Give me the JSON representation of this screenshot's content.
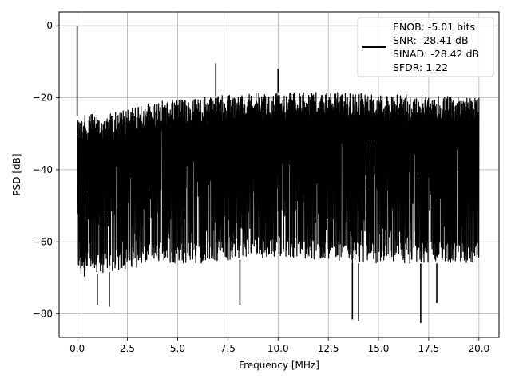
{
  "chart_data": {
    "type": "line",
    "title": "",
    "xlabel": "Frequency [MHz]",
    "ylabel": "PSD [dB]",
    "xlim": [
      -0.9,
      21.0
    ],
    "ylim": [
      -86.5,
      3.8
    ],
    "grid": true,
    "legend_position": "top-right",
    "line_color": "#000000",
    "x_ticks": [
      0.0,
      2.5,
      5.0,
      7.5,
      10.0,
      12.5,
      15.0,
      17.5,
      20.0
    ],
    "x_tick_labels": [
      "0.0",
      "2.5",
      "5.0",
      "7.5",
      "10.0",
      "12.5",
      "15.0",
      "17.5",
      "20.0"
    ],
    "y_ticks": [
      0,
      -20,
      -40,
      -60,
      -80
    ],
    "y_tick_labels": [
      "0",
      "−20",
      "−40",
      "−60",
      "−80"
    ],
    "legend": {
      "lines": [
        "ENOB: -5.01 bits",
        "SNR: -28.41 dB",
        "SINAD: -28.42 dB",
        "SFDR: 1.22"
      ]
    },
    "series": [
      {
        "x_range": [
          0.0,
          20.0
        ],
        "noise_floor_upper_db": [
          -25,
          -24,
          -21,
          -20,
          -19,
          -18.5,
          -18.5,
          -18.5,
          -19,
          -19.5,
          -20
        ],
        "noise_floor_lower_db": [
          -70,
          -68,
          -66,
          -66,
          -65,
          -64,
          -65,
          -66,
          -66,
          -66,
          -66
        ],
        "peaks": [
          {
            "x": 0.0,
            "y": 0.0
          },
          {
            "x": 6.9,
            "y": -10.5
          },
          {
            "x": 10.0,
            "y": -12.0
          }
        ],
        "dips": [
          {
            "x": 1.0,
            "y": -77.5
          },
          {
            "x": 1.6,
            "y": -78.0
          },
          {
            "x": 8.1,
            "y": -77.5
          },
          {
            "x": 13.7,
            "y": -81.5
          },
          {
            "x": 14.0,
            "y": -82.0
          },
          {
            "x": 17.1,
            "y": -82.5
          },
          {
            "x": 17.9,
            "y": -77.0
          }
        ]
      }
    ]
  }
}
